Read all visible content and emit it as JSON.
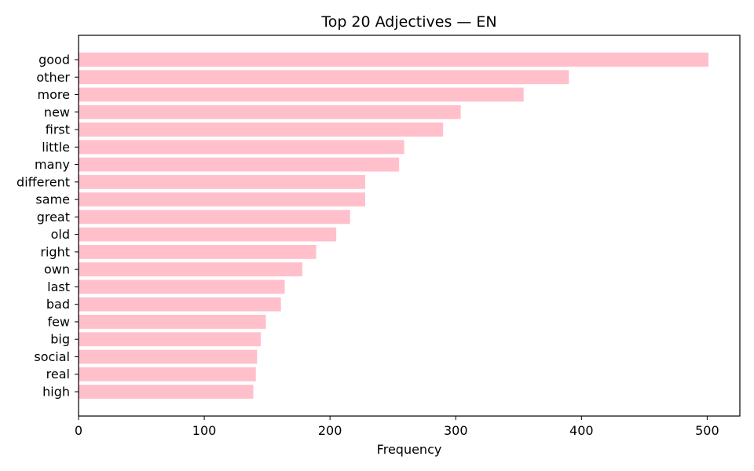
{
  "chart_data": {
    "type": "bar",
    "orientation": "horizontal",
    "title": "Top 20 Adjectives — EN",
    "xlabel": "Frequency",
    "ylabel": "",
    "categories": [
      "good",
      "other",
      "more",
      "new",
      "first",
      "little",
      "many",
      "different",
      "same",
      "great",
      "old",
      "right",
      "own",
      "last",
      "bad",
      "few",
      "big",
      "social",
      "real",
      "high"
    ],
    "values": [
      501,
      390,
      354,
      304,
      290,
      259,
      255,
      228,
      228,
      216,
      205,
      189,
      178,
      164,
      161,
      149,
      145,
      142,
      141,
      139
    ],
    "xlim": [
      0,
      526
    ],
    "xticks": [
      0,
      100,
      200,
      300,
      400,
      500
    ],
    "bar_color": "#ffc0cb",
    "grid": false,
    "legend": false
  }
}
